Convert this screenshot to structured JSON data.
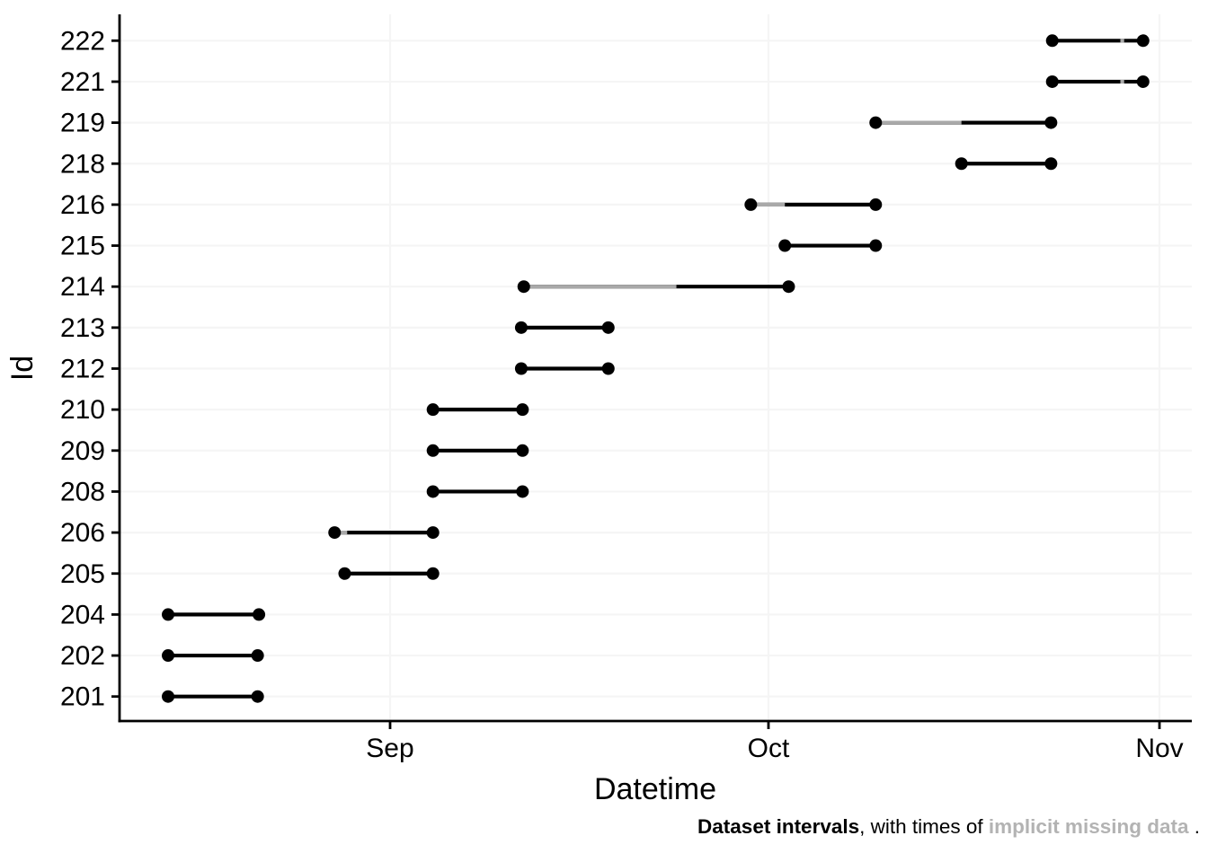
{
  "figure": {
    "background": "#ffffff",
    "caption_parts": [
      {
        "text": "Dataset intervals",
        "bold": true,
        "color": "#000000"
      },
      {
        "text": ", with times of ",
        "bold": false,
        "color": "#000000"
      },
      {
        "text": "implicit missing data",
        "bold": true,
        "color": "#b3b3b3"
      },
      {
        "text": " .",
        "bold": false,
        "color": "#000000"
      }
    ]
  },
  "chart_data": {
    "type": "interval",
    "title": "",
    "xlabel": "Datetime",
    "ylabel": "Id",
    "grid": true,
    "legend": "none",
    "x_axis": {
      "tick_labels": [
        "Sep",
        "Oct",
        "Nov"
      ],
      "tick_days_from_sep1": [
        0,
        30,
        61
      ],
      "visible_range_days_from_sep1": [
        -21.4,
        63.6
      ]
    },
    "y_categories_top_to_bottom": [
      "222",
      "221",
      "219",
      "218",
      "216",
      "215",
      "214",
      "213",
      "212",
      "210",
      "209",
      "208",
      "206",
      "205",
      "204",
      "202",
      "201"
    ],
    "rows": [
      {
        "id": "222",
        "start": "Oct 23",
        "end": "Oct 30",
        "start_day": 52.5,
        "end_day": 59.7,
        "gaps": [
          {
            "from": "Oct 29",
            "to": "Oct 29",
            "from_day": 57.9,
            "to_day": 58.2
          }
        ]
      },
      {
        "id": "221",
        "start": "Oct 23",
        "end": "Oct 30",
        "start_day": 52.5,
        "end_day": 59.7,
        "gaps": [
          {
            "from": "Oct 29",
            "to": "Oct 29",
            "from_day": 57.9,
            "to_day": 58.2
          }
        ]
      },
      {
        "id": "219",
        "start": "Oct 9",
        "end": "Oct 23",
        "start_day": 38.5,
        "end_day": 52.4,
        "gaps": [
          {
            "from": "Oct 9",
            "to": "Oct 16",
            "from_day": 38.5,
            "to_day": 45.3
          }
        ]
      },
      {
        "id": "218",
        "start": "Oct 16",
        "end": "Oct 23",
        "start_day": 45.3,
        "end_day": 52.4,
        "gaps": []
      },
      {
        "id": "216",
        "start": "Sep 29",
        "end": "Oct 9",
        "start_day": 28.6,
        "end_day": 38.5,
        "gaps": [
          {
            "from": "Sep 29",
            "to": "Oct 2",
            "from_day": 28.6,
            "to_day": 31.3
          }
        ]
      },
      {
        "id": "215",
        "start": "Oct 2",
        "end": "Oct 9",
        "start_day": 31.3,
        "end_day": 38.5,
        "gaps": []
      },
      {
        "id": "214",
        "start": "Sep 11",
        "end": "Oct 2",
        "start_day": 10.6,
        "end_day": 31.6,
        "gaps": [
          {
            "from": "Sep 11",
            "to": "Sep 23",
            "from_day": 10.6,
            "to_day": 22.7
          }
        ]
      },
      {
        "id": "213",
        "start": "Sep 11",
        "end": "Sep 18",
        "start_day": 10.4,
        "end_day": 17.3,
        "gaps": []
      },
      {
        "id": "212",
        "start": "Sep 11",
        "end": "Sep 18",
        "start_day": 10.4,
        "end_day": 17.3,
        "gaps": []
      },
      {
        "id": "210",
        "start": "Sep 4",
        "end": "Sep 11",
        "start_day": 3.4,
        "end_day": 10.5,
        "gaps": []
      },
      {
        "id": "209",
        "start": "Sep 4",
        "end": "Sep 11",
        "start_day": 3.4,
        "end_day": 10.5,
        "gaps": []
      },
      {
        "id": "208",
        "start": "Sep 4",
        "end": "Sep 11",
        "start_day": 3.4,
        "end_day": 10.5,
        "gaps": []
      },
      {
        "id": "206",
        "start": "Aug 27",
        "end": "Sep 4",
        "start_day": -4.4,
        "end_day": 3.4,
        "gaps": [
          {
            "from": "Aug 27",
            "to": "Aug 28",
            "from_day": -4.4,
            "to_day": -3.4
          }
        ]
      },
      {
        "id": "205",
        "start": "Aug 28",
        "end": "Sep 4",
        "start_day": -3.6,
        "end_day": 3.4,
        "gaps": []
      },
      {
        "id": "204",
        "start": "Aug 14",
        "end": "Aug 21",
        "start_day": -17.6,
        "end_day": -10.4,
        "gaps": []
      },
      {
        "id": "202",
        "start": "Aug 14",
        "end": "Aug 21",
        "start_day": -17.6,
        "end_day": -10.5,
        "gaps": []
      },
      {
        "id": "201",
        "start": "Aug 14",
        "end": "Aug 21",
        "start_day": -17.6,
        "end_day": -10.5,
        "gaps": []
      }
    ],
    "colors": {
      "interval": "#000000",
      "missing": "#a9a9a9",
      "grid": "#f5f5f5",
      "axis": "#000000",
      "tick_text": "#000000"
    }
  }
}
